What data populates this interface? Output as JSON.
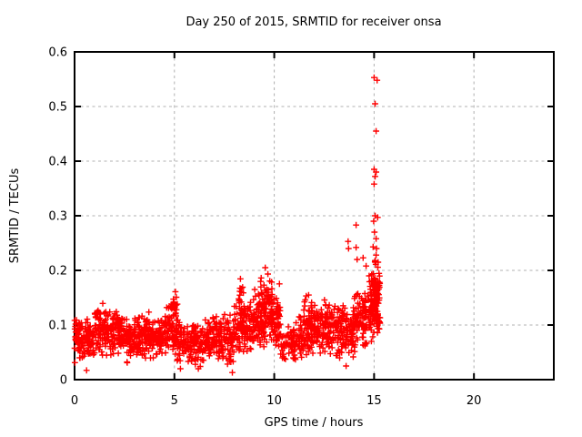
{
  "window": {
    "background": "#ffffff"
  },
  "chart_data": {
    "type": "scatter",
    "title": "Day 250 of 2015, SRMTID for receiver onsa",
    "xlabel": "GPS time / hours",
    "ylabel": "SRMTID / TECUs",
    "xlim": [
      0,
      24
    ],
    "ylim": [
      0,
      0.6
    ],
    "xticks": [
      0,
      5,
      10,
      15,
      20
    ],
    "yticks": [
      0,
      0.1,
      0.2,
      0.3,
      0.4,
      0.5,
      0.6
    ],
    "grid": true,
    "grid_style": "dashed-gray",
    "grid_color": "#b0b0b0",
    "legend": "none",
    "border_color": "#000000",
    "marker": {
      "shape": "plus",
      "color": "#ff0000",
      "size": 7
    },
    "series": [
      {
        "name": "SRMTID",
        "description": "dense scatter cloud 0-15.4h, baseline ~0.03-0.15 TECUs, rising after 14h with spike to 0.55 near 15.1h; no data after 15.4h",
        "clusters": [
          {
            "x0": 0.0,
            "x1": 0.5,
            "n": 60,
            "lo": 0.03,
            "hi": 0.115
          },
          {
            "x0": 0.5,
            "x1": 1.0,
            "n": 60,
            "lo": 0.035,
            "hi": 0.12
          },
          {
            "x0": 1.0,
            "x1": 1.5,
            "n": 62,
            "lo": 0.04,
            "hi": 0.145
          },
          {
            "x0": 1.5,
            "x1": 2.0,
            "n": 60,
            "lo": 0.04,
            "hi": 0.13
          },
          {
            "x0": 2.0,
            "x1": 2.5,
            "n": 62,
            "lo": 0.04,
            "hi": 0.14
          },
          {
            "x0": 2.5,
            "x1": 3.0,
            "n": 60,
            "lo": 0.03,
            "hi": 0.115
          },
          {
            "x0": 3.0,
            "x1": 3.5,
            "n": 60,
            "lo": 0.035,
            "hi": 0.12
          },
          {
            "x0": 3.5,
            "x1": 4.0,
            "n": 60,
            "lo": 0.03,
            "hi": 0.125
          },
          {
            "x0": 4.0,
            "x1": 4.5,
            "n": 58,
            "lo": 0.035,
            "hi": 0.115
          },
          {
            "x0": 4.5,
            "x1": 5.0,
            "n": 60,
            "lo": 0.04,
            "hi": 0.15
          },
          {
            "x0": 4.85,
            "x1": 5.15,
            "n": 25,
            "lo": 0.09,
            "hi": 0.175
          },
          {
            "x0": 5.0,
            "x1": 5.5,
            "n": 55,
            "lo": 0.02,
            "hi": 0.12
          },
          {
            "x0": 5.5,
            "x1": 6.0,
            "n": 55,
            "lo": 0.03,
            "hi": 0.105
          },
          {
            "x0": 6.0,
            "x1": 6.5,
            "n": 55,
            "lo": 0.02,
            "hi": 0.11
          },
          {
            "x0": 6.5,
            "x1": 7.0,
            "n": 58,
            "lo": 0.035,
            "hi": 0.12
          },
          {
            "x0": 7.0,
            "x1": 7.5,
            "n": 58,
            "lo": 0.03,
            "hi": 0.125
          },
          {
            "x0": 7.5,
            "x1": 8.0,
            "n": 55,
            "lo": 0.015,
            "hi": 0.13
          },
          {
            "x0": 8.0,
            "x1": 8.5,
            "n": 60,
            "lo": 0.04,
            "hi": 0.155
          },
          {
            "x0": 8.2,
            "x1": 8.5,
            "n": 22,
            "lo": 0.1,
            "hi": 0.19
          },
          {
            "x0": 8.5,
            "x1": 9.0,
            "n": 58,
            "lo": 0.035,
            "hi": 0.15
          },
          {
            "x0": 9.0,
            "x1": 9.5,
            "n": 60,
            "lo": 0.05,
            "hi": 0.17
          },
          {
            "x0": 9.3,
            "x1": 9.55,
            "n": 20,
            "lo": 0.1,
            "hi": 0.205
          },
          {
            "x0": 9.5,
            "x1": 10.0,
            "n": 62,
            "lo": 0.05,
            "hi": 0.18
          },
          {
            "x0": 9.6,
            "x1": 9.9,
            "n": 18,
            "lo": 0.1,
            "hi": 0.2
          },
          {
            "x0": 10.0,
            "x1": 10.3,
            "n": 35,
            "lo": 0.05,
            "hi": 0.16
          },
          {
            "x0": 10.1,
            "x1": 10.3,
            "n": 12,
            "lo": 0.09,
            "hi": 0.18
          },
          {
            "x0": 10.3,
            "x1": 10.95,
            "n": 45,
            "lo": 0.025,
            "hi": 0.1
          },
          {
            "x0": 10.95,
            "x1": 11.5,
            "n": 55,
            "lo": 0.03,
            "hi": 0.12
          },
          {
            "x0": 11.3,
            "x1": 11.9,
            "n": 22,
            "lo": 0.08,
            "hi": 0.165
          },
          {
            "x0": 11.5,
            "x1": 12.0,
            "n": 58,
            "lo": 0.04,
            "hi": 0.13
          },
          {
            "x0": 12.0,
            "x1": 12.5,
            "n": 60,
            "lo": 0.04,
            "hi": 0.145
          },
          {
            "x0": 12.5,
            "x1": 13.0,
            "n": 60,
            "lo": 0.04,
            "hi": 0.16
          },
          {
            "x0": 13.0,
            "x1": 13.5,
            "n": 60,
            "lo": 0.03,
            "hi": 0.15
          },
          {
            "x0": 13.5,
            "x1": 14.0,
            "n": 60,
            "lo": 0.035,
            "hi": 0.14
          },
          {
            "x0": 14.0,
            "x1": 14.5,
            "n": 62,
            "lo": 0.05,
            "hi": 0.165
          },
          {
            "x0": 14.5,
            "x1": 15.0,
            "n": 64,
            "lo": 0.055,
            "hi": 0.185
          },
          {
            "x0": 14.8,
            "x1": 15.05,
            "n": 18,
            "lo": 0.12,
            "hi": 0.21
          },
          {
            "x0": 14.95,
            "x1": 15.3,
            "n": 70,
            "lo": 0.07,
            "hi": 0.22
          },
          {
            "x0": 15.0,
            "x1": 15.28,
            "n": 25,
            "lo": 0.1,
            "hi": 0.23
          }
        ],
        "outliers": [
          [
            15.0,
            0.553
          ],
          [
            15.15,
            0.548
          ],
          [
            15.05,
            0.505
          ],
          [
            15.1,
            0.455
          ],
          [
            15.0,
            0.385
          ],
          [
            15.1,
            0.38
          ],
          [
            15.05,
            0.372
          ],
          [
            15.0,
            0.358
          ],
          [
            15.05,
            0.3
          ],
          [
            15.18,
            0.297
          ],
          [
            14.98,
            0.29
          ],
          [
            15.02,
            0.27
          ],
          [
            15.1,
            0.258
          ],
          [
            14.95,
            0.243
          ],
          [
            15.12,
            0.24
          ],
          [
            15.05,
            0.218
          ],
          [
            15.2,
            0.215
          ],
          [
            15.1,
            0.228
          ],
          [
            14.1,
            0.283
          ],
          [
            13.7,
            0.253
          ],
          [
            13.72,
            0.24
          ],
          [
            14.1,
            0.242
          ],
          [
            14.15,
            0.22
          ],
          [
            14.45,
            0.223
          ],
          [
            14.6,
            0.208
          ],
          [
            14.75,
            0.19
          ],
          [
            9.55,
            0.205
          ],
          [
            0.6,
            0.017
          ],
          [
            5.3,
            0.02
          ],
          [
            7.9,
            0.013
          ],
          [
            6.2,
            0.02
          ],
          [
            13.6,
            0.025
          ]
        ]
      }
    ]
  }
}
